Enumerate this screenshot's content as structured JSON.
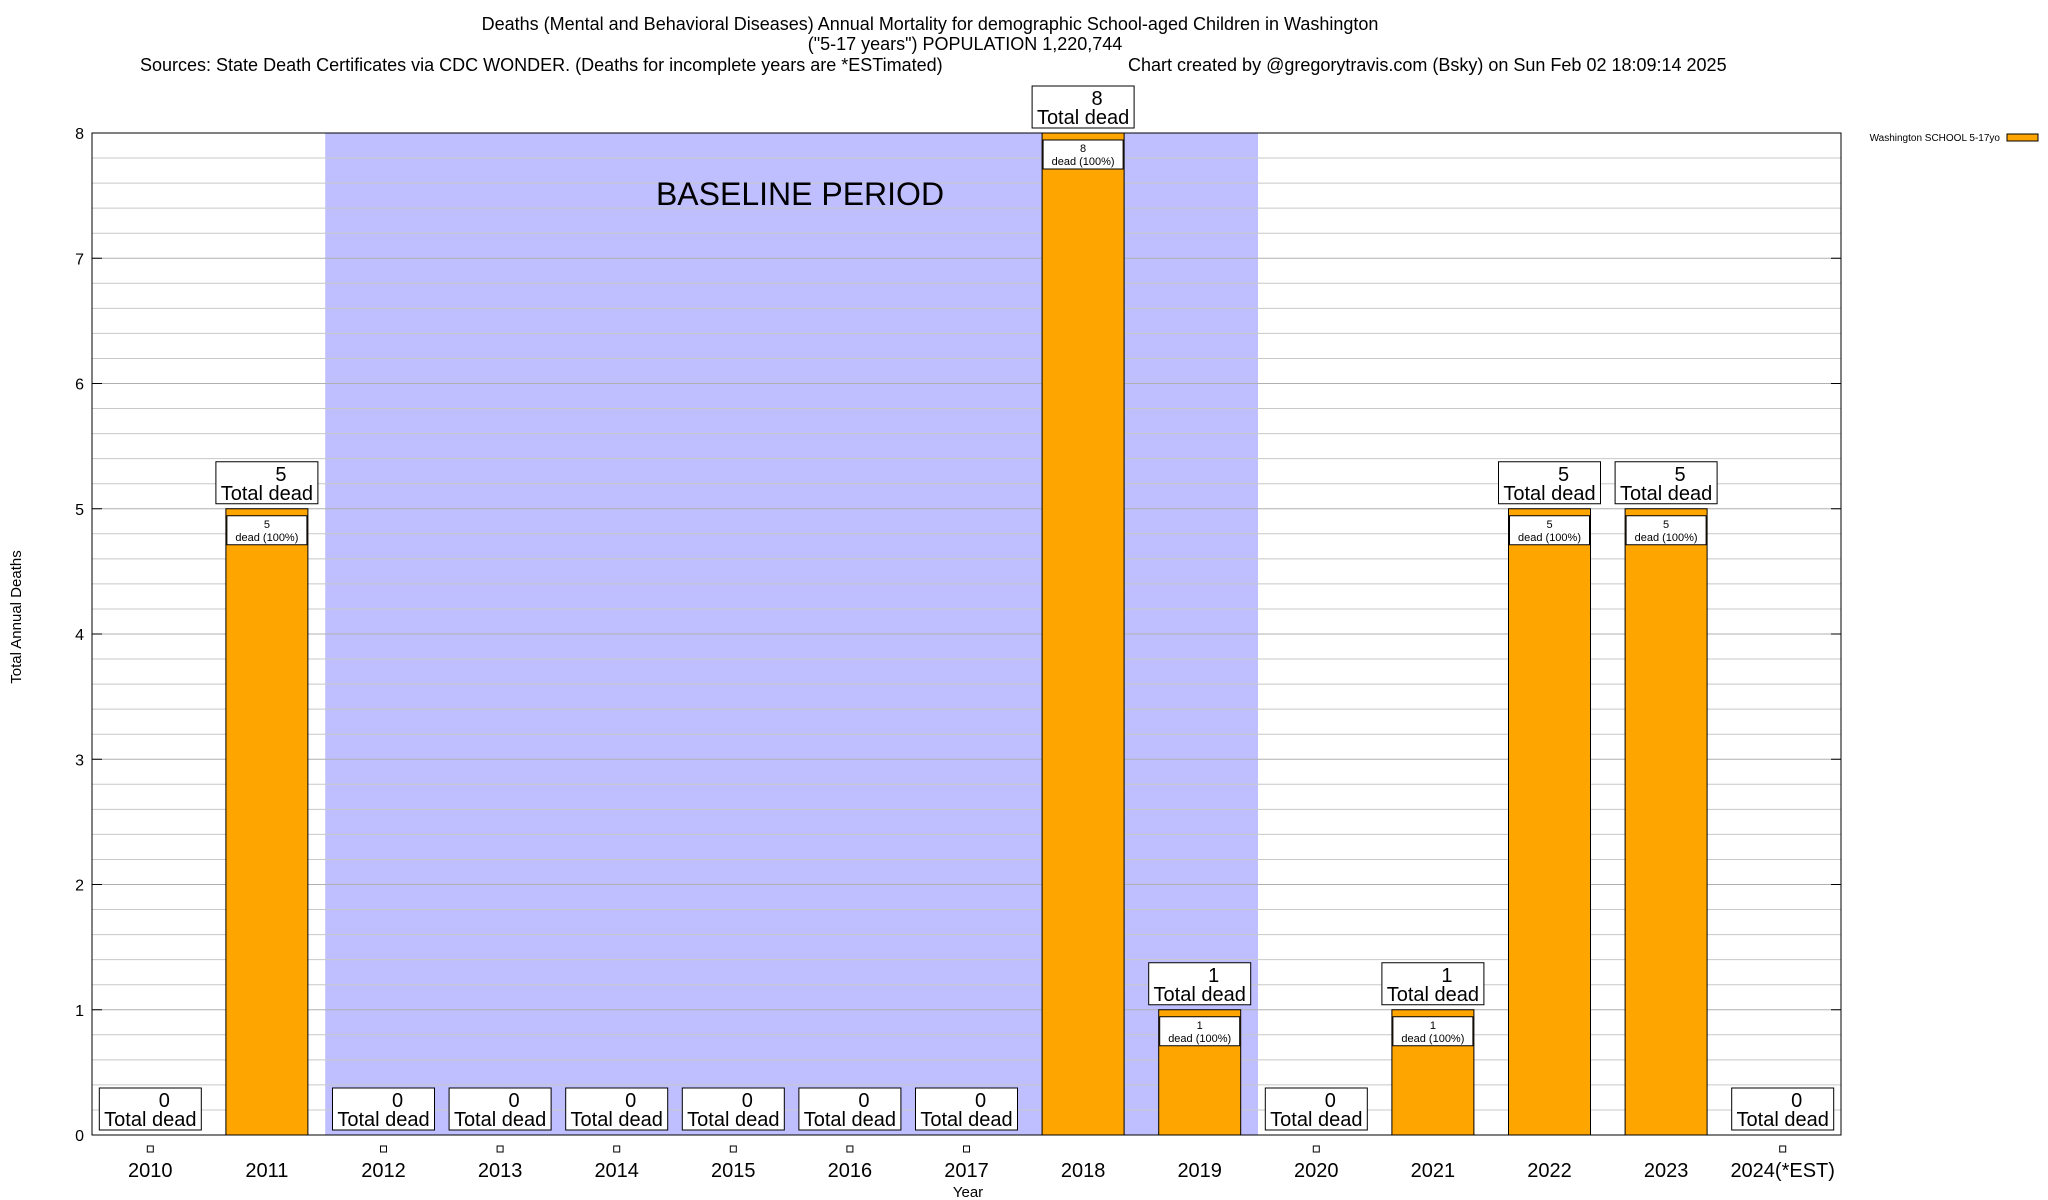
{
  "chart_data": {
    "type": "bar",
    "title_lines": [
      "Deaths (Mental and Behavioral Diseases) Annual Mortality for demographic School-aged Children in Washington",
      "(\"5-17 years\") POPULATION 1,220,744"
    ],
    "sources": "Sources: State Death Certificates via CDC WONDER. (Deaths for incomplete years are *ESTimated)",
    "credit": "Chart created by @gregorytravis.com (Bsky) on Sun Feb 02 18:09:14 2025",
    "xlabel": "Year",
    "ylabel": "Total Annual Deaths",
    "ylim": [
      0,
      8
    ],
    "y_ticks": [
      "0",
      "1",
      "2",
      "3",
      "4",
      "5",
      "6",
      "7",
      "8"
    ],
    "categories": [
      "2010",
      "2011",
      "2012",
      "2013",
      "2014",
      "2015",
      "2016",
      "2017",
      "2018",
      "2019",
      "2020",
      "2021",
      "2022",
      "2023",
      "2024(*EST)"
    ],
    "series": [
      {
        "name": "Washington SCHOOL 5-17yo",
        "color": "#ffa500",
        "values": [
          0,
          5,
          0,
          0,
          0,
          0,
          0,
          0,
          8,
          1,
          0,
          1,
          5,
          5,
          0
        ]
      }
    ],
    "total_label_word": "Total dead",
    "bar_label_word": "dead (100%)",
    "baseline": {
      "label": "BASELINE PERIOD",
      "start_category": "2012",
      "end_category": "2019",
      "color": "#bfbfff"
    },
    "grid": true,
    "legend_position": "top-right"
  }
}
